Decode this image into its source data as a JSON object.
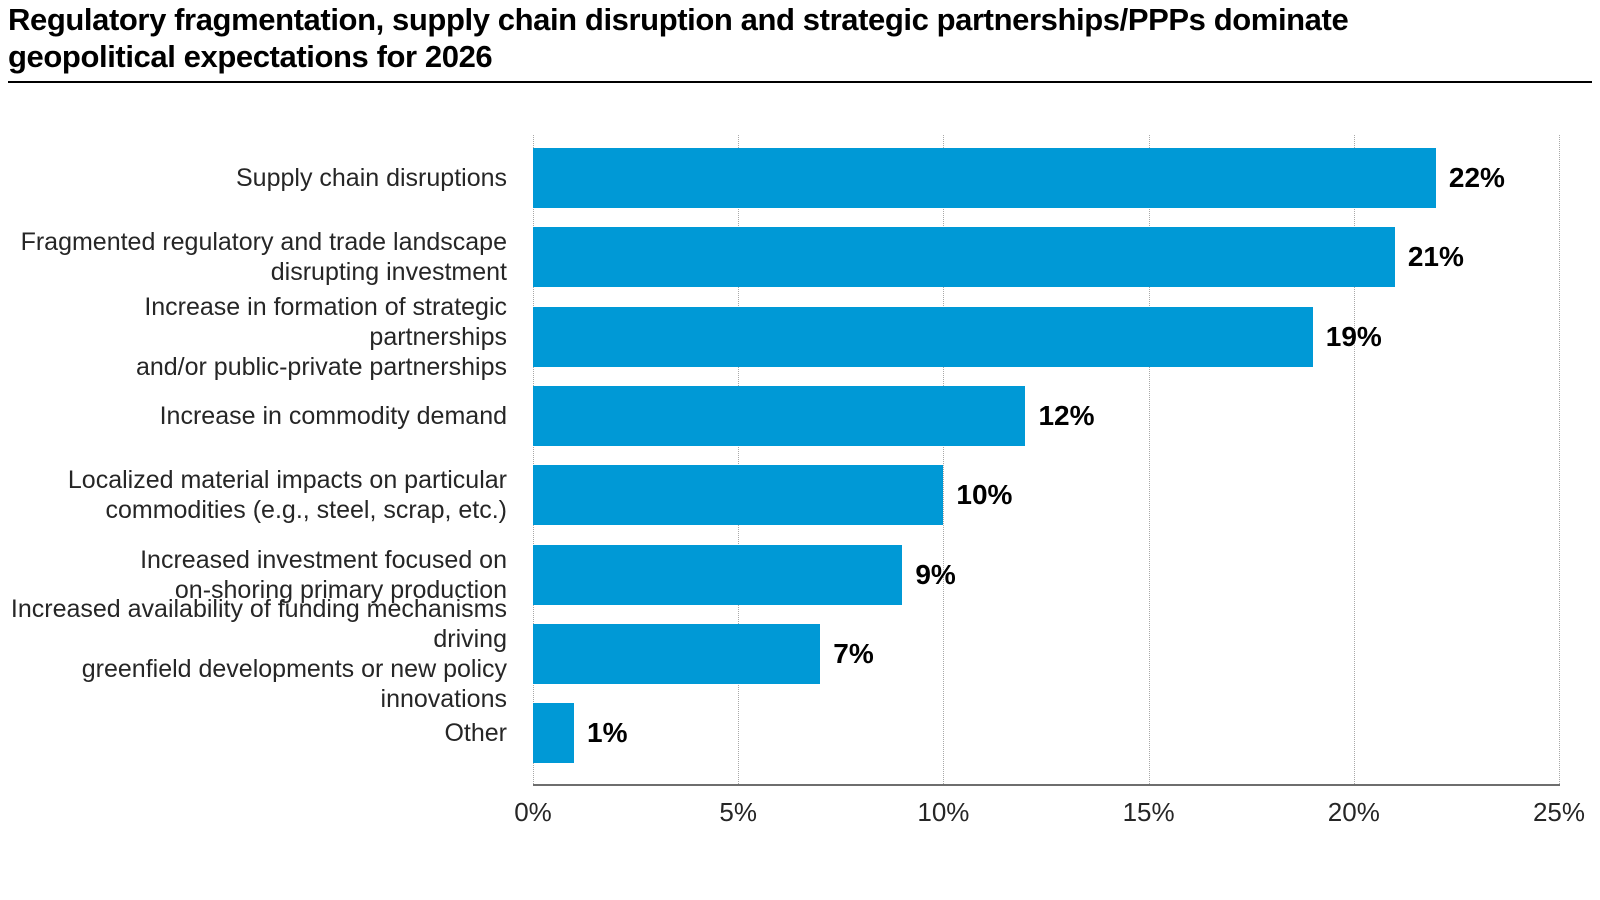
{
  "chart_data": {
    "type": "bar",
    "orientation": "horizontal",
    "title": "Regulatory fragmentation, supply chain disruption and strategic partnerships/PPPs dominate\ngeopolitical expectations for 2026",
    "categories": [
      "Supply chain disruptions",
      "Fragmented regulatory and trade landscape\ndisrupting investment",
      "Increase in formation of strategic partnerships\nand/or public-private partnerships",
      "Increase in commodity demand",
      "Localized material impacts on particular\ncommodities (e.g., steel, scrap, etc.)",
      "Increased investment focused on\non-shoring primary production",
      "Increased availability of funding mechanisms driving\ngreenfield developments or new policy innovations",
      "Other"
    ],
    "values": [
      22,
      21,
      19,
      12,
      10,
      9,
      7,
      1
    ],
    "value_labels": [
      "22%",
      "21%",
      "19%",
      "12%",
      "10%",
      "9%",
      "7%",
      "1%"
    ],
    "xlabel": "",
    "ylabel": "",
    "xlim": [
      0,
      25
    ],
    "x_tick_values": [
      0,
      5,
      10,
      15,
      20,
      25
    ],
    "x_tick_labels": [
      "0%",
      "5%",
      "10%",
      "15%",
      "20%",
      "25%"
    ],
    "grid": "vertical-dotted",
    "legend": "none",
    "bar_color": "#0099d6",
    "title_color": "#000000",
    "label_color": "#262626",
    "value_label_color": "#000000"
  }
}
